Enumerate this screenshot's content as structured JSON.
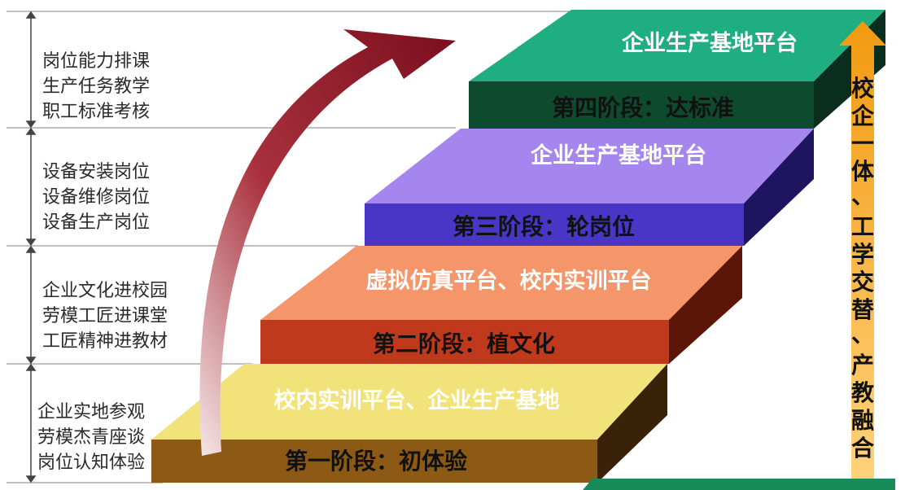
{
  "left_groups": [
    {
      "lines": [
        "岗位能力排课",
        "生产任务教学",
        "职工标准考核"
      ]
    },
    {
      "lines": [
        "设备安装岗位",
        "设备维修岗位",
        "设备生产岗位"
      ]
    },
    {
      "lines": [
        "企业文化进校园",
        "劳模工匠进课堂",
        "工匠精神进教材"
      ]
    },
    {
      "lines": [
        "企业实地参观",
        "劳模杰青座谈",
        "岗位认知体验"
      ]
    }
  ],
  "steps": [
    {
      "platform": "校内实训平台、企业生产基地",
      "stage": "第一阶段：初体验",
      "top_color": "#f2e27a",
      "front_color": "#8c5a14"
    },
    {
      "platform": "虚拟仿真平台、校内实训平台",
      "stage": "第二阶段：植文化",
      "top_color": "#f5956a",
      "front_color": "#c0391c"
    },
    {
      "platform": "企业生产基地平台",
      "stage": "第三阶段：轮岗位",
      "top_color": "#a486ee",
      "front_color": "#4a35c6"
    },
    {
      "platform": "企业生产基地平台",
      "stage": "第四阶段：达标准",
      "top_color": "#1fae80",
      "front_color": "#0d4a2e"
    }
  ],
  "side_text": [
    "校",
    "企",
    "一",
    "体",
    "、",
    "工",
    "学",
    "交",
    "替",
    "、",
    "产",
    "教",
    "融",
    "合"
  ],
  "colors": {
    "arrow": "#8b1223",
    "side_arrow": "#f0a21e",
    "green_base": "#178c5a"
  }
}
